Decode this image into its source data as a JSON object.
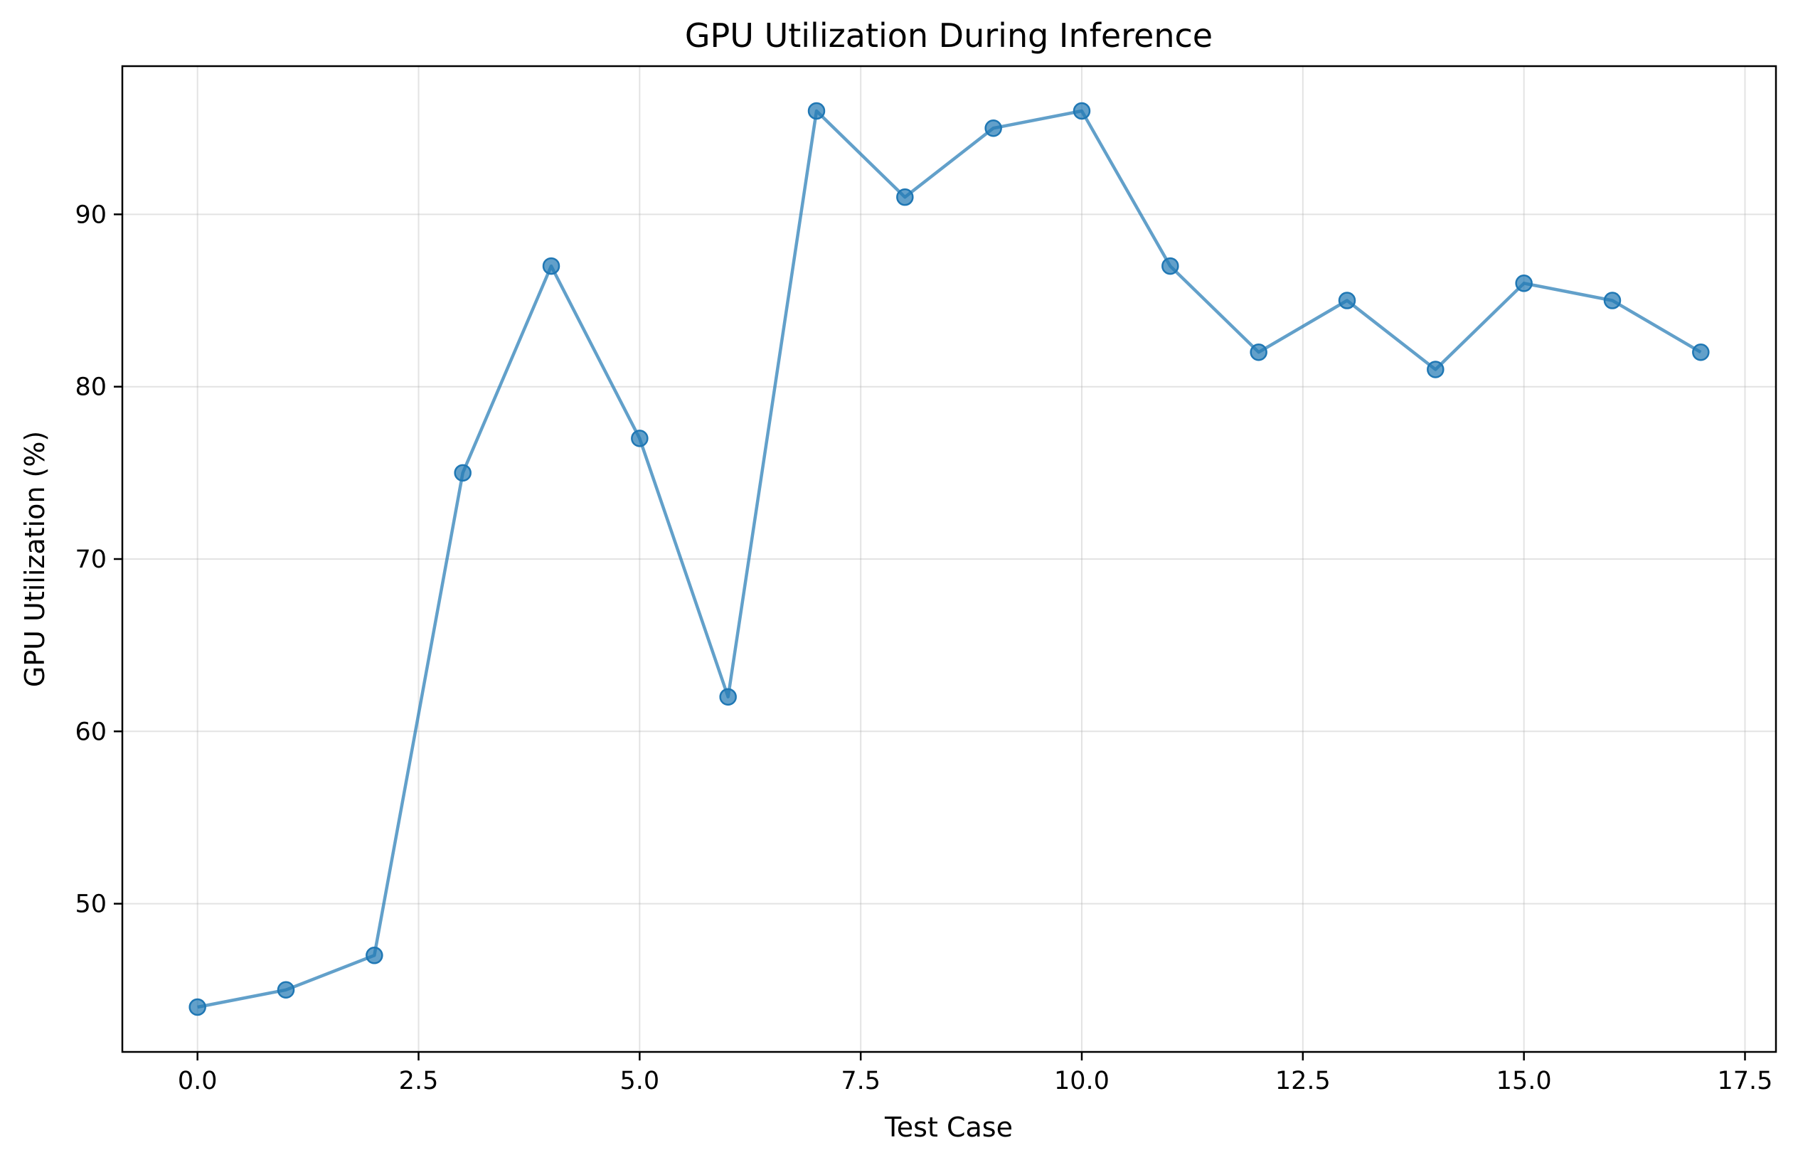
{
  "chart_data": {
    "type": "line",
    "title": "GPU Utilization During Inference",
    "xlabel": "Test Case",
    "ylabel": "GPU Utilization (%)",
    "xlim": [
      -0.85,
      17.85
    ],
    "ylim": [
      41.4,
      98.6
    ],
    "xticks": [
      0.0,
      2.5,
      5.0,
      7.5,
      10.0,
      12.5,
      15.0,
      17.5
    ],
    "xtick_labels": [
      "0.0",
      "2.5",
      "5.0",
      "7.5",
      "10.0",
      "12.5",
      "15.0",
      "17.5"
    ],
    "yticks": [
      50,
      60,
      70,
      80,
      90
    ],
    "ytick_labels": [
      "50",
      "60",
      "70",
      "80",
      "90"
    ],
    "grid": true,
    "series": [
      {
        "color": "#1f77b4",
        "marker": "circle",
        "x": [
          0,
          1,
          2,
          3,
          4,
          5,
          6,
          7,
          8,
          9,
          10,
          11,
          12,
          13,
          14,
          15,
          16,
          17
        ],
        "values": [
          44,
          45,
          47,
          75,
          87,
          77,
          62,
          96,
          91,
          95,
          96,
          87,
          82,
          85,
          81,
          86,
          85,
          82
        ]
      }
    ]
  }
}
